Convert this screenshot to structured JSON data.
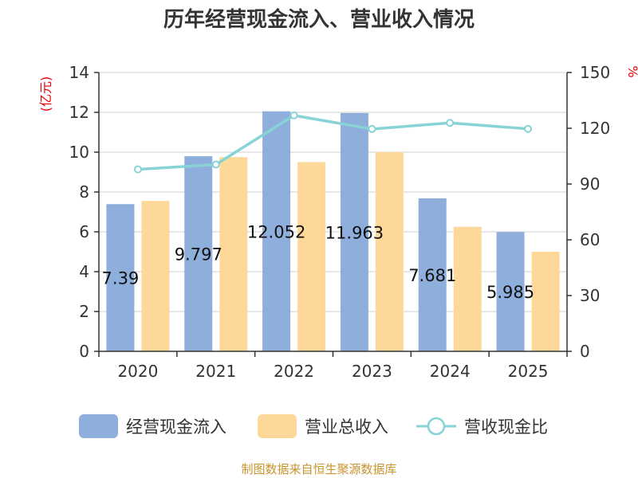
{
  "chart_data": {
    "type": "bar",
    "title": "历年经营现金流入、营业收入情况",
    "categories": [
      "2020",
      "2021",
      "2022",
      "2023",
      "2024",
      "2025"
    ],
    "series": [
      {
        "name": "经营现金流入",
        "type": "bar",
        "axis": "left",
        "color": "#8eaedb",
        "values": [
          7.39,
          9.797,
          12.052,
          11.963,
          7.681,
          5.985
        ]
      },
      {
        "name": "营业总收入",
        "type": "bar",
        "axis": "left",
        "color": "#fed898",
        "values": [
          7.55,
          9.75,
          9.5,
          10.0,
          6.25,
          5.0
        ]
      },
      {
        "name": "营收现金比",
        "type": "line",
        "axis": "right",
        "color": "#88d3d6",
        "values": [
          97.9,
          100.5,
          126.9,
          119.6,
          122.9,
          119.7
        ]
      }
    ],
    "data_labels": [
      "7.39",
      "9.797",
      "12.052",
      "11.963",
      "7.681",
      "5.985"
    ],
    "left_axis": {
      "unit": "(亿元)",
      "min": 0,
      "max": 14,
      "ticks": [
        "0",
        "2",
        "4",
        "6",
        "8",
        "10",
        "12",
        "14"
      ]
    },
    "right_axis": {
      "unit": "%",
      "min": 0,
      "max": 150,
      "ticks": [
        "0",
        "30",
        "60",
        "90",
        "120",
        "150"
      ]
    },
    "grid": true,
    "legend_position": "bottom"
  },
  "source": "制图数据来自恒生聚源数据库"
}
